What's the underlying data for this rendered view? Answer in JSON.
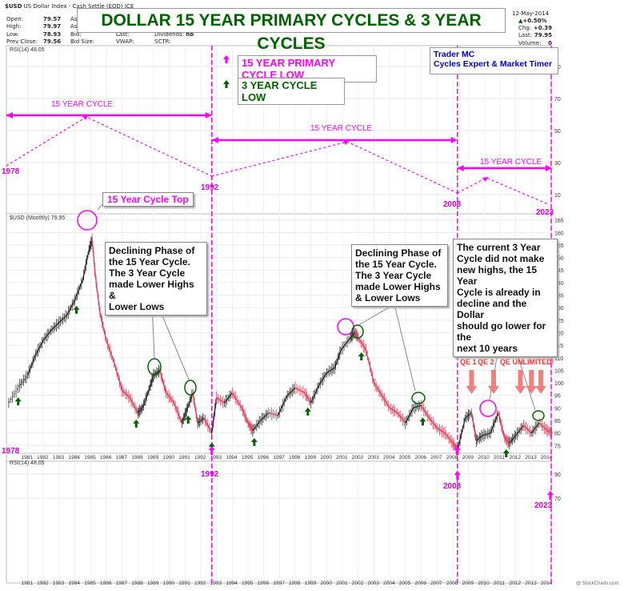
{
  "header": {
    "symbol": "$USD",
    "name": "US Dollar Index - Cash Settle (EOD) ICE",
    "date": "12-May-2014",
    "change_pct": "+0.50%",
    "stats_left": [
      {
        "label": "Open:",
        "value": "79.57"
      },
      {
        "label": "High:",
        "value": "79.97"
      },
      {
        "label": "Low:",
        "value": "78.93"
      },
      {
        "label": "Prev Close:",
        "value": "79.56"
      }
    ],
    "stats_mid": [
      "Ask:",
      "Ask:",
      "Bid:",
      "Bid Size:"
    ],
    "stats_mid2": [
      "Last:",
      "VWAP:"
    ],
    "dividends": {
      "label": "Dividends:",
      "value": "no"
    },
    "sctr": "SCTR:",
    "stats_right": [
      {
        "label": "Chg:",
        "value": "+0.39"
      },
      {
        "label": "Last:",
        "value": "79.95"
      },
      {
        "label": "Volume:",
        "value": "0"
      }
    ]
  },
  "title": "DOLLAR 15 YEAR PRIMARY CYCLES & 3 YEAR CYCLES",
  "credit": {
    "line1": "Trader MC",
    "line2": "Cycles Expert & Market Timer"
  },
  "legend": {
    "primary": "15 YEAR PRIMARY CYCLE LOW",
    "three": "3 YEAR CYCLE LOW"
  },
  "panel_labels": {
    "rsi_top": "RSI(14) 48.05",
    "price": "$USD (Monthly) 79.95",
    "rsi_bottom": "RSI(14) 48.05"
  },
  "watermark": "@ StockCharts.com",
  "cycle_labels": {
    "cycle1": "15 YEAR CYCLE",
    "cycle2": "15 YEAR CYCLE",
    "cycle3": "15 YEAR CYCLE",
    "y1978": "1978",
    "y1992": "1992",
    "y2008": "2008",
    "y2023": "2023"
  },
  "annotations": {
    "top": "15 Year Cycle Top",
    "decline1": [
      "Declining Phase of",
      "the 15 Year Cycle.",
      "The 3 Year Cycle",
      "made Lower Highs &",
      "Lower Lows"
    ],
    "decline2": [
      "Declining Phase of",
      "the 15 Year Cycle.",
      "The 3 Year Cycle",
      "made Lower Highs",
      "& Lower Lows"
    ],
    "current": [
      "The current 3 Year",
      "Cycle did not make",
      "new highs, the 15 Year",
      "Cycle is already in",
      "decline and the Dollar",
      "should go lower for the",
      "next 10 years"
    ],
    "qe1": "QE 1",
    "qe2": "QE 2",
    "qe_unl": "QE UNLIMITED!"
  },
  "colors": {
    "magenta": "#ff00ff",
    "green": "#006400",
    "qe_red": "#ff3333",
    "arrow_pink": "#f08080"
  },
  "chart_data": {
    "type": "line",
    "title": "DOLLAR 15 YEAR PRIMARY CYCLES & 3 YEAR CYCLES",
    "x_ticks": [
      "1981",
      "1982",
      "1983",
      "1984",
      "1985",
      "1986",
      "1987",
      "1988",
      "1989",
      "1990",
      "1991",
      "1992",
      "1993",
      "1994",
      "1995",
      "1996",
      "1997",
      "1998",
      "1999",
      "2000",
      "2001",
      "2002",
      "2003",
      "2004",
      "2005",
      "2006",
      "2007",
      "2008",
      "2009",
      "2010",
      "2011",
      "2012",
      "2013",
      "2014"
    ],
    "price_yticks": [
      75,
      80,
      85,
      90,
      95,
      100,
      105,
      110,
      115,
      120,
      125,
      130,
      135,
      140,
      145,
      150,
      155,
      160,
      165
    ],
    "rsi_yticks": [
      10,
      30,
      50,
      70,
      90
    ],
    "ylim": [
      70,
      166
    ],
    "series": [
      {
        "name": "$USD (Monthly)",
        "x": [
          1979.8,
          1980.5,
          1981.0,
          1981.5,
          1982.0,
          1982.5,
          1983.0,
          1983.5,
          1984.0,
          1984.5,
          1984.9,
          1985.1,
          1985.3,
          1985.6,
          1986.0,
          1986.5,
          1987.0,
          1987.5,
          1988.0,
          1988.3,
          1988.7,
          1989.0,
          1989.4,
          1989.8,
          1990.3,
          1990.8,
          1991.1,
          1991.5,
          1991.8,
          1992.2,
          1992.7,
          1993.0,
          1993.5,
          1994.0,
          1994.6,
          1995.0,
          1995.3,
          1995.8,
          1996.3,
          1996.9,
          1997.5,
          1998.0,
          1998.6,
          1999.0,
          1999.5,
          2000.0,
          2000.5,
          2000.9,
          2001.5,
          2001.8,
          2002.0,
          2002.5,
          2003.0,
          2003.5,
          2004.0,
          2004.5,
          2005.0,
          2005.5,
          2006.0,
          2006.5,
          2007.0,
          2007.5,
          2008.0,
          2008.3,
          2008.8,
          2009.2,
          2009.5,
          2009.9,
          2010.4,
          2010.9,
          2011.3,
          2011.6,
          2012.0,
          2012.5,
          2013.0,
          2013.5,
          2014.0,
          2014.35
        ],
        "values": [
          92,
          99,
          103,
          111,
          117,
          121,
          124,
          127,
          133,
          141,
          153,
          157,
          143,
          128,
          117,
          108,
          97,
          94,
          88,
          90,
          97,
          103,
          105,
          96,
          92,
          84,
          89,
          96,
          84,
          86,
          80,
          94,
          92,
          96,
          90,
          84,
          81,
          85,
          88,
          87,
          95,
          98,
          96,
          92,
          99,
          104,
          106,
          113,
          118,
          120,
          118,
          113,
          100,
          95,
          90,
          88,
          84,
          90,
          91,
          86,
          82,
          80,
          76,
          73,
          86,
          88,
          77,
          79,
          80,
          88,
          78,
          76,
          79,
          83,
          80,
          84,
          81,
          80
        ]
      }
    ],
    "three_year_lows_years": [
      1980.4,
      1984.1,
      1987.9,
      1991.2,
      1992.7,
      1995.4,
      1998.8,
      2002.2,
      2006.1,
      2011.4
    ],
    "primary_lows_years": [
      1978.0,
      1992.7,
      2008.3
    ],
    "fifteen_year_tops_years": [
      1985.1,
      2001.6
    ],
    "qe_arrows_years": [
      2009.2,
      2010.6,
      2012.3,
      2013.0,
      2013.6
    ]
  }
}
